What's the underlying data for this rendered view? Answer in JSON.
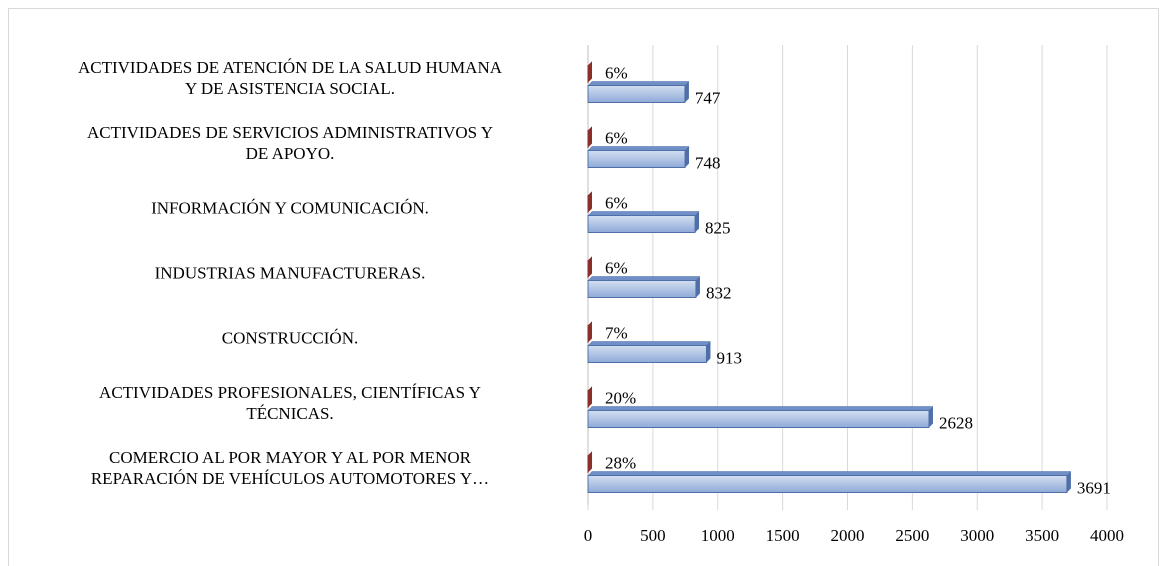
{
  "chart_data": {
    "type": "bar",
    "orientation": "horizontal",
    "categories": [
      "COMERCIO AL POR MAYOR Y AL POR MENOR\nREPARACIÓN DE VEHÍCULOS AUTOMOTORES Y…",
      "ACTIVIDADES PROFESIONALES, CIENTÍFICAS Y\nTÉCNICAS.",
      "CONSTRUCCIÓN.",
      "INDUSTRIAS MANUFACTURERAS.",
      "INFORMACIÓN Y COMUNICACIÓN.",
      "ACTIVIDADES DE SERVICIOS ADMINISTRATIVOS Y\nDE APOYO.",
      "ACTIVIDADES DE ATENCIÓN DE LA SALUD HUMANA\nY DE ASISTENCIA SOCIAL."
    ],
    "series": [
      {
        "color": "#95b0dc",
        "values": [
          3691,
          2628,
          913,
          832,
          825,
          748,
          747
        ]
      },
      {
        "color": "#c0504d",
        "values": [
          28,
          20,
          7,
          6,
          6,
          6,
          6
        ],
        "value_labels": [
          "28%",
          "20%",
          "7%",
          "6%",
          "6%",
          "6%",
          "6%"
        ]
      }
    ],
    "xlim": [
      0,
      4000
    ],
    "xticks": [
      0,
      500,
      1000,
      1500,
      2000,
      2500,
      3000,
      3500,
      4000
    ],
    "grid": true
  }
}
